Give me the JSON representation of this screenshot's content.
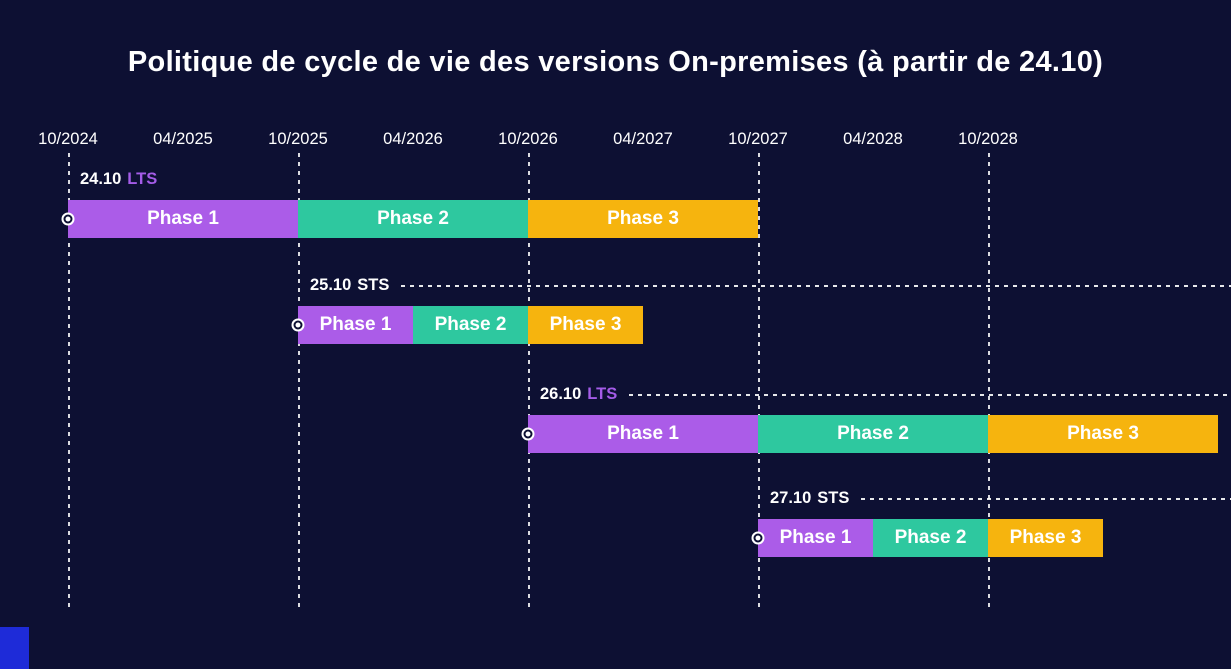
{
  "title": "Politique de cycle de vie des versions On-premises (à partir de 24.10)",
  "colors": {
    "background": "#0d1033",
    "phase1": "#ab5ce8",
    "phase2": "#2ec89f",
    "phase3": "#f6b40e",
    "lts_tag": "#a45ce8",
    "sts_tag": "#ffffff",
    "grid": "#ffffff",
    "bottom_accent": "#1e2bd8"
  },
  "chart_data": {
    "type": "gantt",
    "title": "Politique de cycle de vie des versions On-premises (à partir de 24.10)",
    "x_axis_unit": "months from 10/2024",
    "x_ticks": [
      {
        "label": "10/2024",
        "month": 0
      },
      {
        "label": "04/2025",
        "month": 6
      },
      {
        "label": "10/2025",
        "month": 12
      },
      {
        "label": "04/2026",
        "month": 18
      },
      {
        "label": "10/2026",
        "month": 24
      },
      {
        "label": "04/2027",
        "month": 30
      },
      {
        "label": "10/2027",
        "month": 36
      },
      {
        "label": "04/2028",
        "month": 42
      },
      {
        "label": "10/2028",
        "month": 48
      }
    ],
    "gridline_months": [
      0,
      12,
      24,
      36,
      48
    ],
    "rows": [
      {
        "version": "24.10",
        "tag": "LTS",
        "start_month": 0,
        "connector": false,
        "phases": [
          {
            "name": "Phase 1",
            "start_month": 0,
            "end_month": 12,
            "color_key": "phase1"
          },
          {
            "name": "Phase 2",
            "start_month": 12,
            "end_month": 24,
            "color_key": "phase2"
          },
          {
            "name": "Phase 3",
            "start_month": 24,
            "end_month": 36,
            "color_key": "phase3"
          }
        ]
      },
      {
        "version": "25.10",
        "tag": "STS",
        "start_month": 12,
        "connector": true,
        "phases": [
          {
            "name": "Phase 1",
            "start_month": 12,
            "end_month": 18,
            "color_key": "phase1"
          },
          {
            "name": "Phase 2",
            "start_month": 18,
            "end_month": 24,
            "color_key": "phase2"
          },
          {
            "name": "Phase 3",
            "start_month": 24,
            "end_month": 30,
            "color_key": "phase3"
          }
        ]
      },
      {
        "version": "26.10",
        "tag": "LTS",
        "start_month": 24,
        "connector": true,
        "phases": [
          {
            "name": "Phase 1",
            "start_month": 24,
            "end_month": 36,
            "color_key": "phase1"
          },
          {
            "name": "Phase 2",
            "start_month": 36,
            "end_month": 48,
            "color_key": "phase2"
          },
          {
            "name": "Phase 3",
            "start_month": 48,
            "end_month": 60,
            "color_key": "phase3"
          }
        ]
      },
      {
        "version": "27.10",
        "tag": "STS",
        "start_month": 36,
        "connector": true,
        "phases": [
          {
            "name": "Phase 1",
            "start_month": 36,
            "end_month": 42,
            "color_key": "phase1"
          },
          {
            "name": "Phase 2",
            "start_month": 42,
            "end_month": 48,
            "color_key": "phase2"
          },
          {
            "name": "Phase 3",
            "start_month": 48,
            "end_month": 54,
            "color_key": "phase3"
          }
        ]
      }
    ]
  }
}
